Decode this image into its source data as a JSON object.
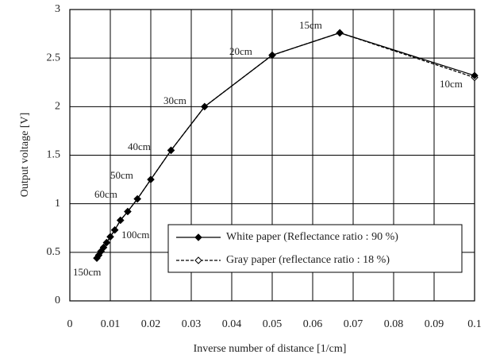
{
  "chart_data": {
    "type": "line",
    "xlabel": "Inverse number of distance [1/cm]",
    "ylabel": "Output voltage [V]",
    "x": [
      0.00667,
      0.00714,
      0.00769,
      0.00833,
      0.00909,
      0.01,
      0.0111,
      0.0125,
      0.0143,
      0.0167,
      0.02,
      0.025,
      0.0333,
      0.05,
      0.0667,
      0.1
    ],
    "series": [
      {
        "name": "White paper (Reflectance ratio : 90 %)",
        "color": "#000000",
        "line_style": "solid",
        "marker_fill": "filled",
        "values": [
          0.44,
          0.47,
          0.51,
          0.55,
          0.6,
          0.66,
          0.73,
          0.83,
          0.92,
          1.05,
          1.25,
          1.55,
          2.0,
          2.53,
          2.76,
          2.32
        ]
      },
      {
        "name": "Gray paper (reflectance ratio : 18 %)",
        "color": "#000000",
        "line_style": "dashed",
        "marker_fill": "open",
        "values": [
          0.44,
          0.47,
          0.51,
          0.55,
          0.6,
          0.66,
          0.73,
          0.83,
          0.92,
          1.05,
          1.25,
          1.55,
          2.0,
          2.53,
          2.76,
          2.3
        ]
      }
    ],
    "annotations": [
      "150cm",
      "100cm",
      "60cm",
      "50cm",
      "40cm",
      "30cm",
      "20cm",
      "15cm",
      "10cm"
    ],
    "xlim": [
      0,
      0.1
    ],
    "xticks": [
      0,
      0.01,
      0.02,
      0.03,
      0.04,
      0.05,
      0.06,
      0.07,
      0.08,
      0.09,
      0.1
    ],
    "ylim": [
      0,
      3
    ],
    "yticks": [
      0,
      0.5,
      1,
      1.5,
      2,
      2.5,
      3
    ],
    "grid": true,
    "legend_position": "lower right"
  }
}
